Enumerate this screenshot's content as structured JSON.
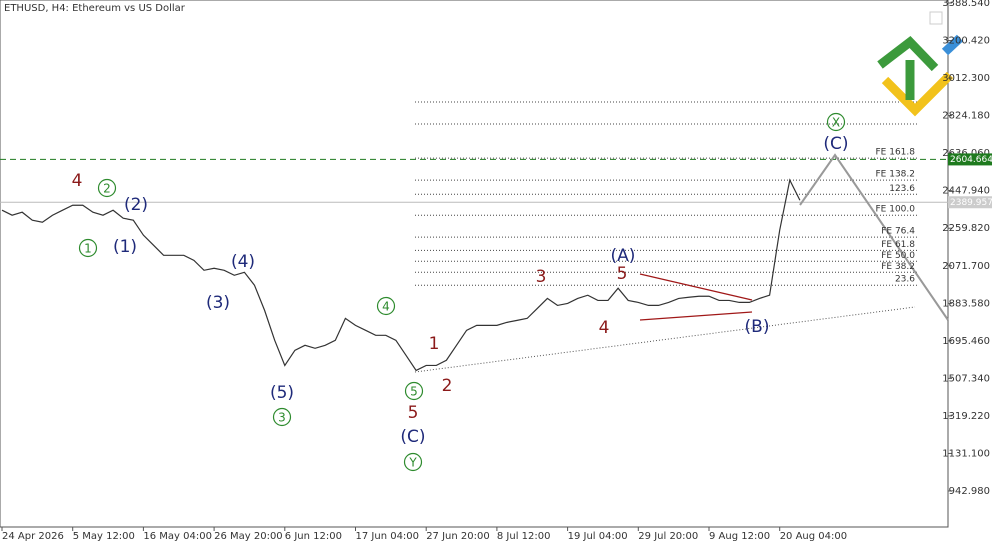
{
  "chart_data": {
    "type": "line",
    "title": "ETHUSD, H4:  Ethereum vs US Dollar",
    "categories": [
      "24 Apr 2026",
      null,
      null,
      null,
      null,
      null,
      null,
      "5 May 12:00",
      null,
      null,
      null,
      null,
      null,
      null,
      "16 May 04:00",
      null,
      null,
      null,
      null,
      null,
      null,
      "26 May 20:00",
      null,
      null,
      null,
      null,
      null,
      null,
      "6 Jun 12:00",
      null,
      null,
      null,
      null,
      null,
      null,
      "17 Jun 04:00",
      null,
      null,
      null,
      null,
      null,
      null,
      "27 Jun 20:00",
      null,
      null,
      null,
      null,
      null,
      null,
      "8 Jul 12:00",
      null,
      null,
      null,
      null,
      null,
      null,
      "19 Jul 04:00",
      null,
      null,
      null,
      null,
      null,
      null,
      "29 Jul 20:00",
      null,
      null,
      null,
      null,
      null,
      null,
      "9 Aug 12:00",
      null,
      null,
      null,
      null,
      null,
      null,
      "20 Aug 04:00",
      null,
      null
    ],
    "series": [
      {
        "name": "ETHUSD",
        "color": "#333333",
        "values": [
          2350,
          2325,
          2340,
          2300,
          2290,
          2325,
          2350,
          2375,
          2375,
          2340,
          2325,
          2350,
          2310,
          2300,
          2225,
          2175,
          2124,
          2124,
          2124,
          2099,
          2049,
          2059,
          2049,
          2024,
          2039,
          1974,
          1848,
          1698,
          1572,
          1648,
          1673,
          1658,
          1673,
          1698,
          1808,
          1773,
          1748,
          1723,
          1723,
          1698,
          1623,
          1547,
          1572,
          1572,
          1598,
          1673,
          1748,
          1773,
          1773,
          1773,
          1788,
          1798,
          1808,
          1858,
          1908,
          1873,
          1883,
          1908,
          1924,
          1898,
          1898,
          1959,
          1898,
          1888,
          1873,
          1873,
          1888,
          1908,
          1914,
          1919,
          1919,
          1898,
          1898,
          1888,
          1888,
          1908,
          1924,
          2250,
          2501,
          2400
        ]
      }
    ],
    "ylim": [
      762.4,
      3403.6
    ],
    "yticks": [
      {
        "value": 3388.54,
        "label": "3388.540"
      },
      {
        "value": 3200.42,
        "label": "3200.420"
      },
      {
        "value": 3012.3,
        "label": "3012.300"
      },
      {
        "value": 2824.18,
        "label": "2824.180"
      },
      {
        "value": 2636.06,
        "label": "2636.060"
      },
      {
        "value": 2447.94,
        "label": "2447.940"
      },
      {
        "value": 2259.82,
        "label": "2259.820"
      },
      {
        "value": 2071.7,
        "label": "2071.700"
      },
      {
        "value": 1883.58,
        "label": "1883.580"
      },
      {
        "value": 1695.46,
        "label": "1695.460"
      },
      {
        "value": 1507.34,
        "label": "1507.340"
      },
      {
        "value": 1319.22,
        "label": "1319.220"
      },
      {
        "value": 1131.1,
        "label": "1131.100"
      },
      {
        "value": 942.98,
        "label": "942.980"
      }
    ],
    "price_lines": [
      {
        "value": 2604.664,
        "color": "#1e7a1e",
        "style": "dashed"
      },
      {
        "value": 2389.957,
        "color": "#bbbbbb",
        "style": "solid"
      }
    ],
    "levels": [
      {
        "value": 2611,
        "label": "FE 161.8"
      },
      {
        "value": 2501,
        "label": "FE 138.2"
      },
      {
        "value": 2430,
        "label": "123.6"
      },
      {
        "value": 2325,
        "label": "FE 100.0"
      },
      {
        "value": 2215,
        "label": "FE 76.4"
      },
      {
        "value": 2149,
        "label": "FE 61.8"
      },
      {
        "value": 2094,
        "label": "FE 50.0"
      },
      {
        "value": 2039,
        "label": "FE 38.2"
      },
      {
        "value": 1974,
        "label": "23.6"
      }
    ],
    "annotations": [
      {
        "text": "4",
        "color": "#8b1a1a"
      },
      {
        "text": "1",
        "color": "#8b1a1a"
      },
      {
        "text": "2",
        "color": "#8b1a1a"
      },
      {
        "text": "5",
        "color": "#8b1a1a"
      },
      {
        "text": "3",
        "color": "#8b1a1a"
      },
      {
        "text": "5",
        "color": "#8b1a1a"
      },
      {
        "text": "4",
        "color": "#8b1a1a"
      },
      {
        "text": "(2)",
        "color": "#1f2a7a"
      },
      {
        "text": "(1)",
        "color": "#1f2a7a"
      },
      {
        "text": "(4)",
        "color": "#1f2a7a"
      },
      {
        "text": "(3)",
        "color": "#1f2a7a"
      },
      {
        "text": "(5)",
        "color": "#1f2a7a"
      },
      {
        "text": "(C)",
        "color": "#1f2a7a"
      },
      {
        "text": "(A)",
        "color": "#1f2a7a"
      },
      {
        "text": "(B)",
        "color": "#1f2a7a"
      },
      {
        "text": "(C)",
        "color": "#1f2a7a"
      },
      {
        "text": "2",
        "color": "#2e8b2e",
        "circled": true
      },
      {
        "text": "1",
        "color": "#2e8b2e",
        "circled": true
      },
      {
        "text": "4",
        "color": "#2e8b2e",
        "circled": true
      },
      {
        "text": "5",
        "color": "#2e8b2e",
        "circled": true
      },
      {
        "text": "3",
        "color": "#2e8b2e",
        "circled": true
      },
      {
        "text": "Y",
        "color": "#2e8b2e",
        "circled": true
      },
      {
        "text": "X",
        "color": "#2e8b2e",
        "circled": true
      }
    ]
  }
}
